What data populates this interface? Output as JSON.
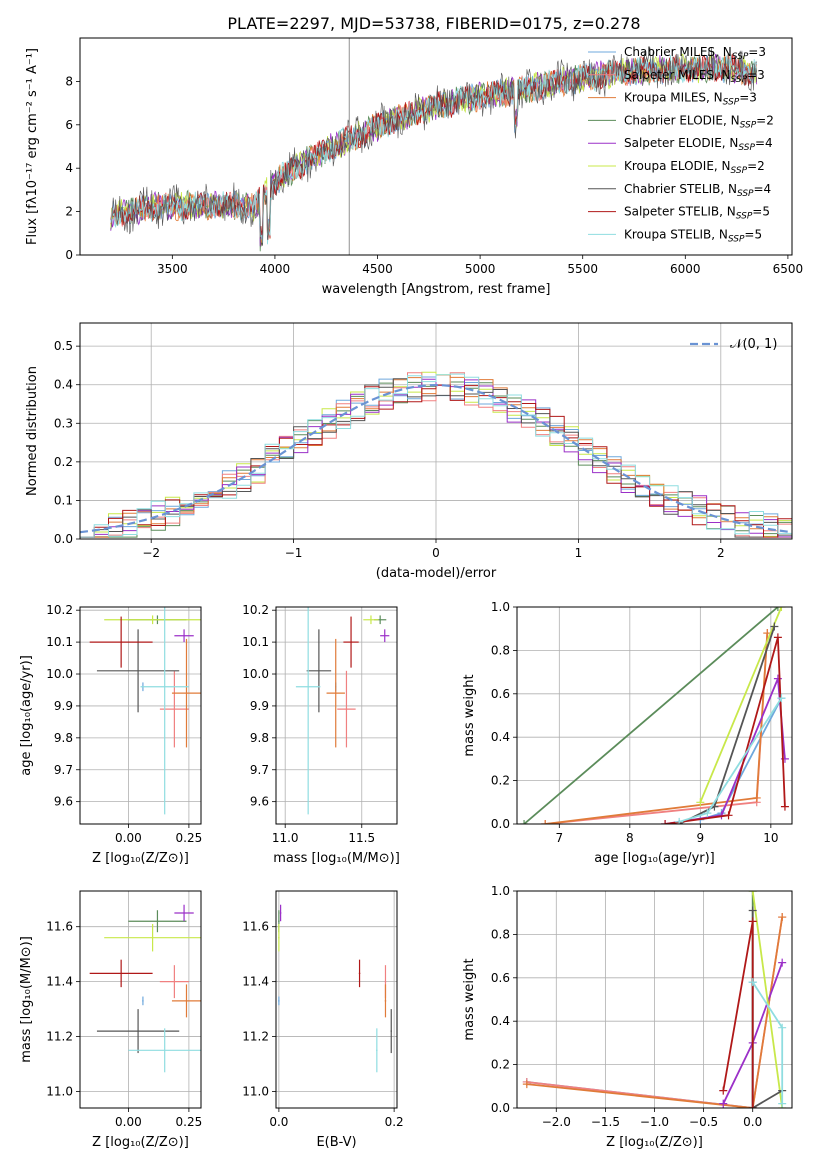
{
  "figure_title": "PLATE=2297, MJD=53738, FIBERID=0175, z=0.278",
  "legend": [
    {
      "label": "Chabrier MILES, N",
      "sub": "SSP",
      "post": "=3",
      "color": "#6fa8dc"
    },
    {
      "label": "Salpeter MILES, N",
      "sub": "SSP",
      "post": "=3",
      "color": "#f08080"
    },
    {
      "label": "Kroupa MILES, N",
      "sub": "SSP",
      "post": "=3",
      "color": "#e07b39"
    },
    {
      "label": "Chabrier ELODIE, N",
      "sub": "SSP",
      "post": "=2",
      "color": "#5b8c5a"
    },
    {
      "label": "Salpeter ELODIE, N",
      "sub": "SSP",
      "post": "=4",
      "color": "#9b30c8"
    },
    {
      "label": "Kroupa ELODIE, N",
      "sub": "SSP",
      "post": "=2",
      "color": "#c8e84a"
    },
    {
      "label": "Chabrier STELIB, N",
      "sub": "SSP",
      "post": "=4",
      "color": "#555555"
    },
    {
      "label": "Salpeter STELIB, N",
      "sub": "SSP",
      "post": "=5",
      "color": "#b01818"
    },
    {
      "label": "Kroupa STELIB, N",
      "sub": "SSP",
      "post": "=5",
      "color": "#8fdde0"
    }
  ],
  "chart_data": [
    {
      "id": "spectrum",
      "type": "line",
      "xlabel": "wavelength [Angstrom, rest frame]",
      "ylabel": "Flux [fλ10⁻¹⁷ erg cm⁻² s⁻¹ A⁻¹]",
      "xlim": [
        3050,
        6520
      ],
      "ylim": [
        0,
        10
      ],
      "xticks": [
        3500,
        4000,
        4500,
        5000,
        5500,
        6000,
        6500
      ],
      "yticks": [
        0,
        2,
        4,
        6,
        8
      ],
      "continuum": {
        "x": [
          3200,
          3400,
          3600,
          3800,
          3900,
          4000,
          4200,
          4400,
          4600,
          4800,
          5000,
          5200,
          5400,
          5600,
          5800,
          6000,
          6200,
          6350
        ],
        "y": [
          1.8,
          2.2,
          2.3,
          2.3,
          2.2,
          3.4,
          4.6,
          5.5,
          6.3,
          6.9,
          7.3,
          7.6,
          8.0,
          8.3,
          8.5,
          8.6,
          8.6,
          8.4
        ]
      }
    },
    {
      "id": "residuals",
      "type": "line",
      "xlabel": "(data-model)/error",
      "ylabel": "Normed distribution",
      "xlim": [
        -2.5,
        2.5
      ],
      "ylim": [
        0,
        0.56
      ],
      "xticks": [
        -2,
        -1,
        0,
        1,
        2
      ],
      "yticks": [
        0.0,
        0.1,
        0.2,
        0.3,
        0.4,
        0.5
      ],
      "gaussian_label": "𝒩(0, 1)",
      "gaussian_color": "#6a93d4"
    },
    {
      "id": "age_vs_Z",
      "type": "scatter",
      "xlabel": "Z [log₁₀(Z/Z⊙)]",
      "ylabel": "age  [log₁₀(age/yr)]",
      "xlim": [
        -0.2,
        0.3
      ],
      "ylim": [
        9.53,
        10.21
      ],
      "xticks": [
        0.0,
        0.25
      ],
      "yticks": [
        9.6,
        9.7,
        9.8,
        9.9,
        10.0,
        10.1,
        10.2
      ],
      "points": [
        {
          "series": 0,
          "x": 0.06,
          "y": 9.96,
          "xe": 0.0,
          "ye": 0.0
        },
        {
          "series": 1,
          "x": 0.19,
          "y": 9.89,
          "xe": 0.06,
          "ye": 0.12
        },
        {
          "series": 2,
          "x": 0.24,
          "y": 9.94,
          "xe": 0.06,
          "ye": 0.17
        },
        {
          "series": 3,
          "x": 0.12,
          "y": 10.17,
          "xe": 0.12,
          "ye": 0.0
        },
        {
          "series": 4,
          "x": 0.23,
          "y": 10.12,
          "xe": 0.04,
          "ye": 0.02
        },
        {
          "series": 5,
          "x": 0.1,
          "y": 10.17,
          "xe": 0.2,
          "ye": 0.0
        },
        {
          "series": 6,
          "x": 0.04,
          "y": 10.01,
          "xe": 0.17,
          "ye": 0.13
        },
        {
          "series": 7,
          "x": -0.03,
          "y": 10.1,
          "xe": 0.13,
          "ye": 0.08
        },
        {
          "series": 8,
          "x": 0.15,
          "y": 9.96,
          "xe": 0.1,
          "ye": 0.4
        }
      ]
    },
    {
      "id": "age_vs_mass",
      "type": "scatter",
      "xlabel": "mass [log₁₀(M/M⊙)]",
      "ylabel": "",
      "xlim": [
        10.94,
        11.73
      ],
      "ylim": [
        9.53,
        10.21
      ],
      "xticks": [
        11.0,
        11.5
      ],
      "yticks": [
        9.6,
        9.7,
        9.8,
        9.9,
        10.0,
        10.1,
        10.2
      ],
      "points": [
        {
          "series": 0,
          "x": 11.33,
          "y": 9.96,
          "xe": 0.0,
          "ye": 0.0
        },
        {
          "series": 1,
          "x": 11.4,
          "y": 9.89,
          "xe": 0.06,
          "ye": 0.12
        },
        {
          "series": 2,
          "x": 11.33,
          "y": 9.94,
          "xe": 0.06,
          "ye": 0.17
        },
        {
          "series": 3,
          "x": 11.62,
          "y": 10.17,
          "xe": 0.04,
          "ye": 0.0
        },
        {
          "series": 4,
          "x": 11.65,
          "y": 10.12,
          "xe": 0.03,
          "ye": 0.02
        },
        {
          "series": 5,
          "x": 11.56,
          "y": 10.17,
          "xe": 0.05,
          "ye": 0.0
        },
        {
          "series": 6,
          "x": 11.22,
          "y": 10.01,
          "xe": 0.08,
          "ye": 0.13
        },
        {
          "series": 7,
          "x": 11.43,
          "y": 10.1,
          "xe": 0.05,
          "ye": 0.08
        },
        {
          "series": 8,
          "x": 11.15,
          "y": 9.96,
          "xe": 0.08,
          "ye": 0.4
        }
      ]
    },
    {
      "id": "massweight_vs_age",
      "type": "line",
      "xlabel": "age  [log₁₀(age/yr)]",
      "ylabel": "mass weight",
      "xlim": [
        6.4,
        10.3
      ],
      "ylim": [
        0,
        1
      ],
      "xticks": [
        7,
        8,
        9,
        10
      ],
      "yticks": [
        0.0,
        0.2,
        0.4,
        0.6,
        0.8,
        1.0
      ],
      "series": [
        {
          "series": 0,
          "x": [
            9.0,
            9.3,
            10.15
          ],
          "y": [
            0.02,
            0.05,
            0.58
          ]
        },
        {
          "series": 1,
          "x": [
            6.8,
            9.8,
            9.95
          ],
          "y": [
            0.0,
            0.1,
            0.88
          ]
        },
        {
          "series": 2,
          "x": [
            6.8,
            9.8,
            9.95
          ],
          "y": [
            0.0,
            0.12,
            0.88
          ]
        },
        {
          "series": 3,
          "x": [
            6.5,
            10.1
          ],
          "y": [
            0.0,
            1.0
          ]
        },
        {
          "series": 4,
          "x": [
            8.5,
            9.3,
            10.1,
            10.2
          ],
          "y": [
            0.0,
            0.04,
            0.67,
            0.3
          ]
        },
        {
          "series": 5,
          "x": [
            9.0,
            10.15
          ],
          "y": [
            0.1,
            1.0
          ]
        },
        {
          "series": 6,
          "x": [
            8.7,
            9.2,
            10.05
          ],
          "y": [
            0.0,
            0.08,
            0.91
          ]
        },
        {
          "series": 7,
          "x": [
            8.5,
            9.4,
            10.1,
            10.2
          ],
          "y": [
            0.0,
            0.04,
            0.86,
            0.08
          ]
        },
        {
          "series": 8,
          "x": [
            8.7,
            9.1,
            10.15
          ],
          "y": [
            0.01,
            0.05,
            0.58
          ]
        }
      ]
    },
    {
      "id": "mass_vs_Z",
      "type": "scatter",
      "xlabel": "Z [log₁₀(Z/Z⊙)]",
      "ylabel": "mass [log₁₀(M/M⊙)]",
      "xlim": [
        -0.2,
        0.3
      ],
      "ylim": [
        10.94,
        11.73
      ],
      "xticks": [
        0.0,
        0.25
      ],
      "yticks": [
        11.0,
        11.2,
        11.4,
        11.6
      ],
      "points": [
        {
          "series": 0,
          "x": 0.06,
          "y": 11.33,
          "xe": 0.0,
          "ye": 0.0
        },
        {
          "series": 1,
          "x": 0.19,
          "y": 11.4,
          "xe": 0.06,
          "ye": 0.06
        },
        {
          "series": 2,
          "x": 0.24,
          "y": 11.33,
          "xe": 0.06,
          "ye": 0.06
        },
        {
          "series": 3,
          "x": 0.12,
          "y": 11.62,
          "xe": 0.12,
          "ye": 0.04
        },
        {
          "series": 4,
          "x": 0.23,
          "y": 11.65,
          "xe": 0.04,
          "ye": 0.03
        },
        {
          "series": 5,
          "x": 0.1,
          "y": 11.56,
          "xe": 0.2,
          "ye": 0.05
        },
        {
          "series": 6,
          "x": 0.04,
          "y": 11.22,
          "xe": 0.17,
          "ye": 0.08
        },
        {
          "series": 7,
          "x": -0.03,
          "y": 11.43,
          "xe": 0.13,
          "ye": 0.05
        },
        {
          "series": 8,
          "x": 0.15,
          "y": 11.15,
          "xe": 0.15,
          "ye": 0.08
        }
      ]
    },
    {
      "id": "mass_vs_EBV",
      "type": "scatter",
      "xlabel": "E(B-V)",
      "ylabel": "",
      "xlim": [
        -0.005,
        0.205
      ],
      "ylim": [
        10.94,
        11.73
      ],
      "xticks": [
        0.0,
        0.2
      ],
      "yticks": [
        11.0,
        11.2,
        11.4,
        11.6
      ],
      "points": [
        {
          "series": 0,
          "x": 0.0,
          "y": 11.33,
          "xe": 0.0,
          "ye": 0.0
        },
        {
          "series": 1,
          "x": 0.185,
          "y": 11.4,
          "xe": 0.0,
          "ye": 0.06
        },
        {
          "series": 2,
          "x": 0.185,
          "y": 11.33,
          "xe": 0.0,
          "ye": 0.06
        },
        {
          "series": 3,
          "x": 0.0,
          "y": 11.62,
          "xe": 0.0,
          "ye": 0.04
        },
        {
          "series": 4,
          "x": 0.003,
          "y": 11.65,
          "xe": 0.0,
          "ye": 0.03
        },
        {
          "series": 5,
          "x": 0.0,
          "y": 11.56,
          "xe": 0.0,
          "ye": 0.05
        },
        {
          "series": 6,
          "x": 0.195,
          "y": 11.22,
          "xe": 0.0,
          "ye": 0.08
        },
        {
          "series": 7,
          "x": 0.14,
          "y": 11.43,
          "xe": 0.0,
          "ye": 0.05
        },
        {
          "series": 8,
          "x": 0.17,
          "y": 11.15,
          "xe": 0.0,
          "ye": 0.08
        }
      ]
    },
    {
      "id": "massweight_vs_Z",
      "type": "line",
      "xlabel": "Z [log₁₀(Z/Z⊙)]",
      "ylabel": "mass weight",
      "xlim": [
        -2.4,
        0.4
      ],
      "ylim": [
        0,
        1
      ],
      "xticks": [
        -2.0,
        -1.5,
        -1.0,
        -0.5,
        0.0
      ],
      "yticks": [
        0.0,
        0.2,
        0.4,
        0.6,
        0.8,
        1.0
      ],
      "series": [
        {
          "series": 0,
          "x": [
            -2.3,
            0.0,
            0.0
          ],
          "y": [
            0.12,
            0.0,
            0.58
          ]
        },
        {
          "series": 1,
          "x": [
            -2.3,
            0.0,
            0.3
          ],
          "y": [
            0.12,
            0.0,
            0.88
          ]
        },
        {
          "series": 2,
          "x": [
            -2.3,
            0.0,
            0.3
          ],
          "y": [
            0.11,
            0.0,
            0.88
          ]
        },
        {
          "series": 3,
          "x": [
            0.0,
            0.0
          ],
          "y": [
            0.0,
            1.0
          ]
        },
        {
          "series": 4,
          "x": [
            -0.3,
            0.0,
            0.3
          ],
          "y": [
            0.02,
            0.3,
            0.67
          ]
        },
        {
          "series": 5,
          "x": [
            0.0,
            0.3
          ],
          "y": [
            1.0,
            0.0
          ]
        },
        {
          "series": 6,
          "x": [
            0.0,
            0.0,
            0.3
          ],
          "y": [
            0.91,
            0.0,
            0.08
          ]
        },
        {
          "series": 7,
          "x": [
            -0.3,
            0.0,
            0.0
          ],
          "y": [
            0.08,
            0.86,
            0.0
          ]
        },
        {
          "series": 8,
          "x": [
            0.0,
            0.3,
            0.3
          ],
          "y": [
            0.58,
            0.37,
            0.02
          ]
        }
      ]
    }
  ]
}
